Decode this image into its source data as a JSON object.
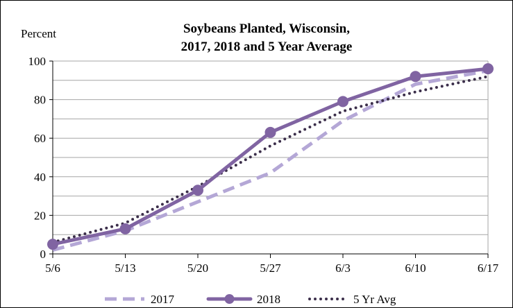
{
  "chart_data": {
    "type": "line",
    "title": "Soybeans Planted, Wisconsin,",
    "subtitle": "2017, 2018 and 5 Year Average",
    "ylabel": "Percent",
    "xlabel": "",
    "categories": [
      "5/6",
      "5/13",
      "5/20",
      "5/27",
      "6/3",
      "6/10",
      "6/17"
    ],
    "ylim": [
      0,
      100
    ],
    "yticks": [
      "0",
      "20",
      "40",
      "60",
      "80",
      "100"
    ],
    "grid": true,
    "legend_position": "bottom",
    "series": [
      {
        "name": "2017",
        "style": "dashed",
        "color": "#B4A7D6",
        "values": [
          2,
          12,
          27,
          42,
          69,
          88,
          95
        ]
      },
      {
        "name": "2018",
        "style": "solid-markers",
        "color": "#8064A2",
        "values": [
          5,
          13,
          33,
          63,
          79,
          92,
          96
        ]
      },
      {
        "name": "5 Yr Avg",
        "style": "dotted",
        "color": "#3B2E4A",
        "values": [
          6,
          16,
          35,
          56,
          74,
          84,
          92
        ]
      }
    ]
  }
}
